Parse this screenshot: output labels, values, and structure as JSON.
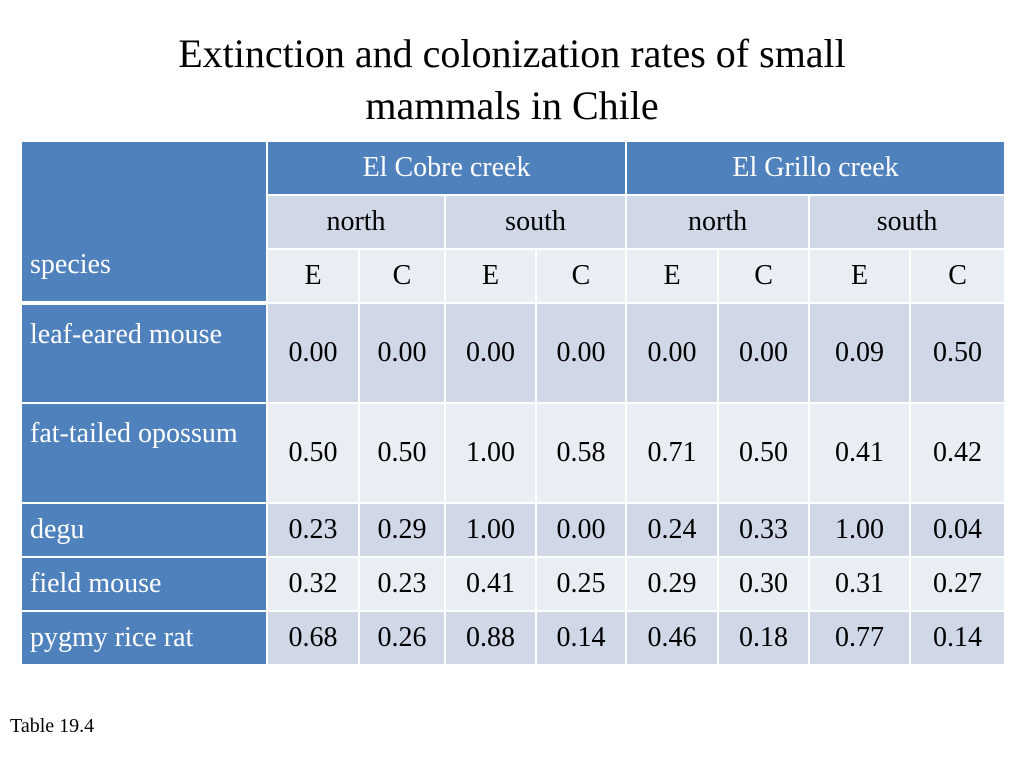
{
  "title_line1": "Extinction and colonization rates of small",
  "title_line2": "mammals in Chile",
  "table": {
    "species_header": "species",
    "creeks": [
      "El Cobre creek",
      "El Grillo creek"
    ],
    "sides": [
      "north",
      "south",
      "north",
      "south"
    ],
    "measures": [
      "E",
      "C",
      "E",
      "C",
      "E",
      "C",
      "E",
      "C"
    ],
    "rows": [
      {
        "species": "leaf-eared mouse",
        "values": [
          "0.00",
          "0.00",
          "0.00",
          "0.00",
          "0.00",
          "0.00",
          "0.09",
          "0.50"
        ]
      },
      {
        "species": "fat-tailed opossum",
        "values": [
          "0.50",
          "0.50",
          "1.00",
          "0.58",
          "0.71",
          "0.50",
          "0.41",
          "0.42"
        ]
      },
      {
        "species": "degu",
        "values": [
          "0.23",
          "0.29",
          "1.00",
          "0.00",
          "0.24",
          "0.33",
          "1.00",
          "0.04"
        ]
      },
      {
        "species": "field mouse",
        "values": [
          "0.32",
          "0.23",
          "0.41",
          "0.25",
          "0.29",
          "0.30",
          "0.31",
          "0.27"
        ]
      },
      {
        "species": "pygmy rice rat",
        "values": [
          "0.68",
          "0.26",
          "0.88",
          "0.14",
          "0.46",
          "0.18",
          "0.77",
          "0.14"
        ]
      }
    ]
  },
  "footnote": "Table 19.4",
  "colors": {
    "header_blue": "#4f81bd",
    "band_dark": "#d0d8e8",
    "band_light": "#e9edf4"
  }
}
